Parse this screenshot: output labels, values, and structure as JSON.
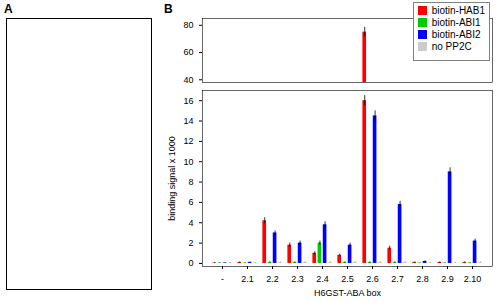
{
  "chart_data": [
    {
      "type": "bar",
      "annotations": [
        "A",
        "B"
      ],
      "categories": [
        "-",
        "2.1",
        "2.2",
        "2.3",
        "2.4",
        "2.5",
        "2.6",
        "2.7",
        "2.8",
        "2.9",
        "2.10"
      ],
      "series": [
        {
          "name": "biotin-HAB1",
          "color": "#ff0000",
          "values": [
            null,
            null,
            null,
            null,
            null,
            null,
            75.0,
            null,
            null,
            null,
            null
          ],
          "error": [
            null,
            null,
            null,
            null,
            null,
            null,
            3.5,
            null,
            null,
            null,
            null
          ]
        },
        {
          "name": "biotin-ABI1",
          "color": "#00cc00",
          "values": [
            null,
            null,
            null,
            null,
            null,
            null,
            null,
            null,
            null,
            null,
            null
          ],
          "error": [
            null,
            null,
            null,
            null,
            null,
            null,
            null,
            null,
            null,
            null,
            null
          ]
        },
        {
          "name": "biotin-ABI2",
          "color": "#0000ff",
          "values": [
            null,
            null,
            null,
            null,
            null,
            null,
            null,
            null,
            null,
            null,
            null
          ],
          "error": [
            null,
            null,
            null,
            null,
            null,
            null,
            null,
            null,
            null,
            null,
            null
          ]
        },
        {
          "name": "no PP2C",
          "color": "#cccccc",
          "values": [
            null,
            null,
            null,
            null,
            null,
            null,
            null,
            null,
            null,
            null,
            null
          ],
          "error": [
            null,
            null,
            null,
            null,
            null,
            null,
            null,
            null,
            null,
            null,
            null
          ]
        }
      ],
      "ylim": [
        38,
        85
      ],
      "yticks": [
        40,
        60,
        80
      ],
      "tick_labels": "y",
      "legend": "upper right"
    },
    {
      "type": "bar",
      "xlabel": "H6GST-ABA box",
      "ylabel": "binding signal x 1000",
      "categories": [
        "-",
        "2.1",
        "2.2",
        "2.3",
        "2.4",
        "2.5",
        "2.6",
        "2.7",
        "2.8",
        "2.9",
        "2.10"
      ],
      "series": [
        {
          "name": "biotin-HAB1",
          "color": "#ff0000",
          "values": [
            0.05,
            0.1,
            4.2,
            1.8,
            1.0,
            0.8,
            16.0,
            1.5,
            0.1,
            0.1,
            0.1
          ],
          "error": [
            0.05,
            0.05,
            0.3,
            0.2,
            0.15,
            0.1,
            0.5,
            0.2,
            0.05,
            0.05,
            0.05
          ]
        },
        {
          "name": "biotin-ABI1",
          "color": "#00cc00",
          "values": [
            0.05,
            0.05,
            0.1,
            0.1,
            2.0,
            0.1,
            0.1,
            0.1,
            0.05,
            0.05,
            0.05
          ],
          "error": [
            0.02,
            0.02,
            0.05,
            0.05,
            0.2,
            0.05,
            0.05,
            0.05,
            0.02,
            0.02,
            0.02
          ]
        },
        {
          "name": "biotin-ABI2",
          "color": "#0000ff",
          "values": [
            0.05,
            0.1,
            3.0,
            2.0,
            3.8,
            1.8,
            14.5,
            5.8,
            0.2,
            9.0,
            2.2
          ],
          "error": [
            0.02,
            0.05,
            0.2,
            0.2,
            0.3,
            0.2,
            0.5,
            0.3,
            0.05,
            0.4,
            0.2
          ]
        },
        {
          "name": "no PP2C",
          "color": "#cccccc",
          "values": [
            0.05,
            0.05,
            0.1,
            0.1,
            0.1,
            0.1,
            0.1,
            0.1,
            0.05,
            0.05,
            0.1
          ],
          "error": [
            0.02,
            0.02,
            0.02,
            0.02,
            0.02,
            0.02,
            0.02,
            0.02,
            0.02,
            0.02,
            0.02
          ]
        }
      ],
      "ylim": [
        -0.3,
        17
      ],
      "yticks": [
        0,
        2,
        4,
        6,
        8,
        10,
        12,
        14,
        16
      ]
    }
  ]
}
